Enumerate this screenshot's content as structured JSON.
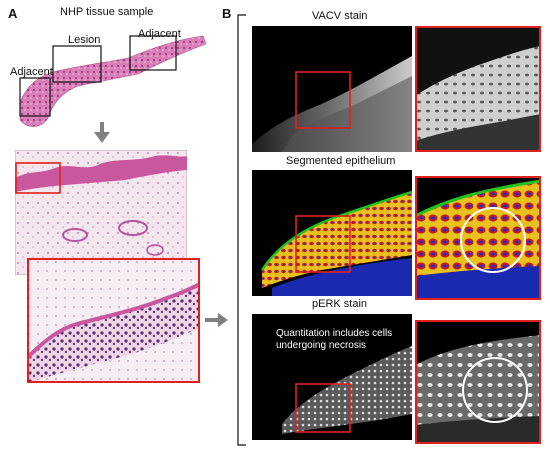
{
  "panel_a": {
    "letter": "A",
    "title": "NHP tissue sample",
    "labels": {
      "lesion": "Lesion",
      "adjacent_left": "Adjacent",
      "adjacent_right": "Adjacent"
    }
  },
  "panel_b": {
    "letter": "B",
    "titles": {
      "vacv": "VACV stain",
      "segmented": "Segmented epithelium",
      "perk": "pERK stain"
    },
    "annotation_line1": "Quantitation includes cells",
    "annotation_line2": "undergoing necrosis"
  },
  "colors": {
    "highlight_box": "#e0201f",
    "h_and_e_pink": "#c85aa0",
    "h_and_e_light": "#f1dcea",
    "arrow": "#808080"
  }
}
